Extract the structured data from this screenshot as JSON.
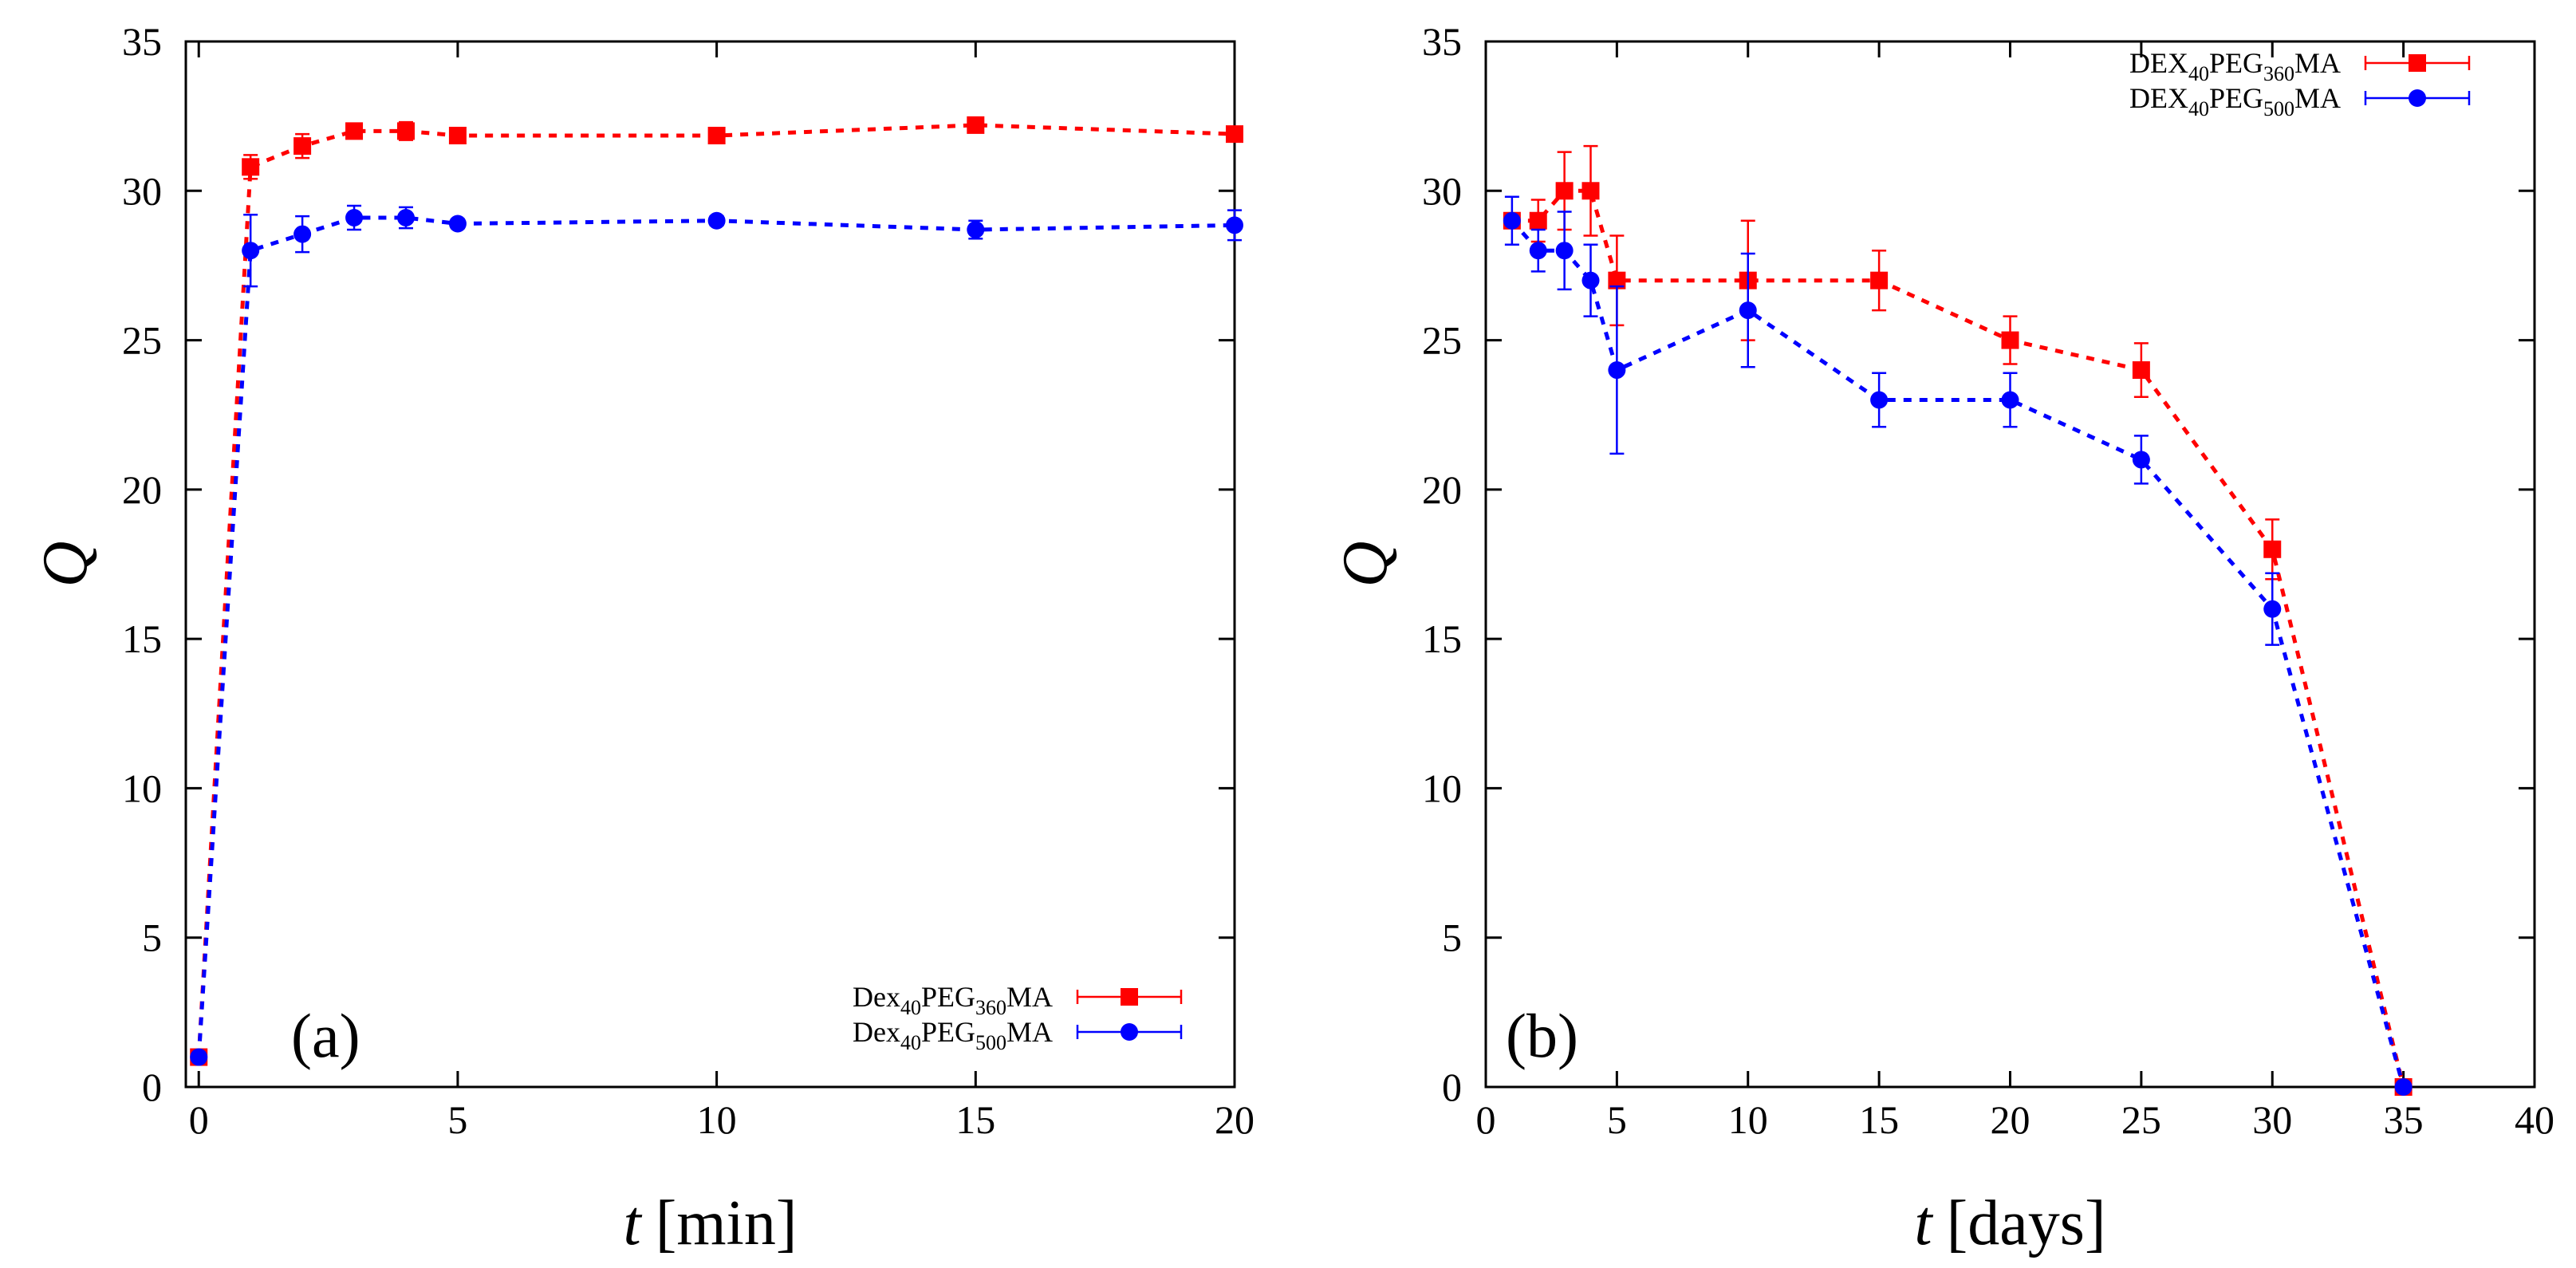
{
  "chart_data": [
    {
      "type": "line",
      "panel_label": "(a)",
      "xlabel": "t [min]",
      "xlabel_var": "t",
      "xlabel_unit": "[min]",
      "ylabel": "Q",
      "xlim": [
        -0.25,
        20
      ],
      "ylim": [
        0,
        35
      ],
      "x_ticks": [
        0,
        5,
        10,
        15,
        20
      ],
      "y_ticks": [
        0,
        5,
        10,
        15,
        20,
        25,
        30,
        35
      ],
      "grid": false,
      "legend_position": "bottom-right",
      "series": [
        {
          "name": "Dex40PEG360MA",
          "legend_parts": [
            {
              "text": "Dex"
            },
            {
              "text": "40",
              "sub": true
            },
            {
              "text": "PEG"
            },
            {
              "text": "360",
              "sub": true
            },
            {
              "text": "MA"
            }
          ],
          "color": "#ff0000",
          "marker": "square",
          "x": [
            0,
            1,
            2,
            3,
            4,
            5,
            10,
            15,
            20
          ],
          "y": [
            1.0,
            30.8,
            31.5,
            32.0,
            32.0,
            31.85,
            31.85,
            32.2,
            31.9
          ],
          "err": [
            0,
            0.4,
            0.4,
            0.2,
            0.3,
            0.15,
            0.15,
            0.2,
            0.2
          ]
        },
        {
          "name": "Dex40PEG500MA",
          "legend_parts": [
            {
              "text": "Dex"
            },
            {
              "text": "40",
              "sub": true
            },
            {
              "text": "PEG"
            },
            {
              "text": "500",
              "sub": true
            },
            {
              "text": "MA"
            }
          ],
          "color": "#0000ff",
          "marker": "circle",
          "x": [
            0,
            1,
            2,
            3,
            4,
            5,
            10,
            15,
            20
          ],
          "y": [
            1.0,
            28.0,
            28.55,
            29.1,
            29.1,
            28.9,
            29.0,
            28.7,
            28.85
          ],
          "err": [
            0,
            1.2,
            0.6,
            0.4,
            0.35,
            0.15,
            0.15,
            0.3,
            0.5
          ]
        }
      ]
    },
    {
      "type": "line",
      "panel_label": "(b)",
      "xlabel": "t [days]",
      "xlabel_var": "t",
      "xlabel_unit": "[days]",
      "ylabel": "Q",
      "xlim": [
        0,
        40
      ],
      "ylim": [
        0,
        35
      ],
      "x_ticks": [
        0,
        5,
        10,
        15,
        20,
        25,
        30,
        35,
        40
      ],
      "y_ticks": [
        0,
        5,
        10,
        15,
        20,
        25,
        30,
        35
      ],
      "grid": false,
      "legend_position": "top-right",
      "series": [
        {
          "name": "DEX40PEG360MA",
          "legend_parts": [
            {
              "text": "DEX"
            },
            {
              "text": "40",
              "sub": true
            },
            {
              "text": "PEG"
            },
            {
              "text": "360",
              "sub": true
            },
            {
              "text": "MA"
            }
          ],
          "color": "#ff0000",
          "marker": "square",
          "x": [
            1,
            2,
            3,
            4,
            5,
            10,
            15,
            20,
            25,
            30,
            35
          ],
          "y": [
            29,
            29,
            30,
            30,
            27,
            27,
            27,
            25,
            24,
            18,
            0
          ],
          "err": [
            0,
            0.7,
            1.3,
            1.5,
            1.5,
            2.0,
            1.0,
            0.8,
            0.9,
            1.0,
            0
          ]
        },
        {
          "name": "DEX40PEG500MA",
          "legend_parts": [
            {
              "text": "DEX"
            },
            {
              "text": "40",
              "sub": true
            },
            {
              "text": "PEG"
            },
            {
              "text": "500",
              "sub": true
            },
            {
              "text": "MA"
            }
          ],
          "color": "#0000ff",
          "marker": "circle",
          "x": [
            1,
            2,
            3,
            4,
            5,
            10,
            15,
            20,
            25,
            30,
            35
          ],
          "y": [
            29,
            28,
            28,
            27,
            24,
            26,
            23,
            23,
            21,
            16,
            0
          ],
          "err": [
            0.8,
            0.7,
            1.3,
            1.2,
            2.8,
            1.9,
            0.9,
            0.9,
            0.8,
            1.2,
            0
          ]
        }
      ]
    }
  ]
}
